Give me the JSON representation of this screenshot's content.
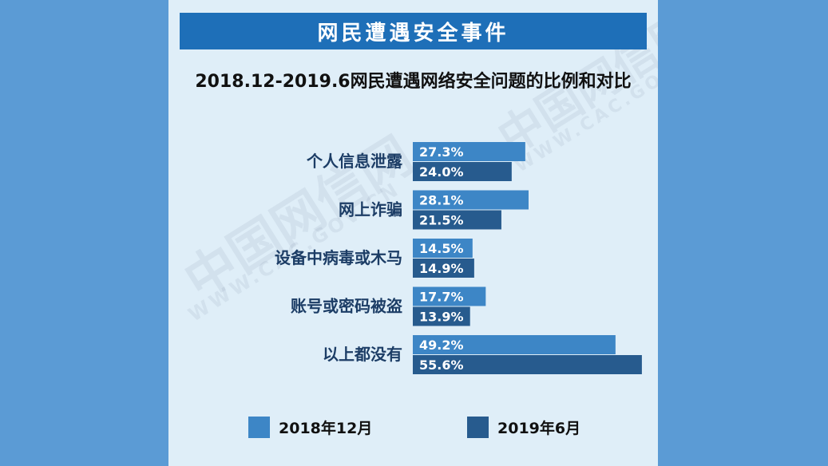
{
  "header": {
    "banner_title": "网民遭遇安全事件",
    "subtitle": "2018.12-2019.6网民遭遇网络安全问题的比例和对比"
  },
  "watermark": {
    "cn": "中国网信网",
    "url": "WWW.CAC.GOV.CN"
  },
  "colors": {
    "page_bg": "#5b9bd5",
    "panel_bg": "#dfeef8",
    "banner_bg": "#1e6fb8",
    "series_2018": "#3d86c6",
    "series_2019": "#275b8e"
  },
  "chart_data": {
    "type": "bar",
    "orientation": "horizontal",
    "title": "2018.12-2019.6网民遭遇网络安全问题的比例和对比",
    "categories": [
      "个人信息泄露",
      "网上诈骗",
      "设备中病毒或木马",
      "账号或密码被盗",
      "以上都没有"
    ],
    "series": [
      {
        "name": "2018年12月",
        "values": [
          27.3,
          28.1,
          14.5,
          17.7,
          49.2
        ],
        "labels": [
          "27.3%",
          "28.1%",
          "14.5%",
          "17.7%",
          "49.2%"
        ]
      },
      {
        "name": "2019年6月",
        "values": [
          24.0,
          21.5,
          14.9,
          13.9,
          55.6
        ],
        "labels": [
          "24.0%",
          "21.5%",
          "14.9%",
          "13.9%",
          "55.6%"
        ]
      }
    ],
    "unit": "%",
    "xlim": [
      0,
      56
    ],
    "grid": false,
    "legend_position": "bottom"
  },
  "legend": {
    "items": [
      "2018年12月",
      "2019年6月"
    ]
  }
}
